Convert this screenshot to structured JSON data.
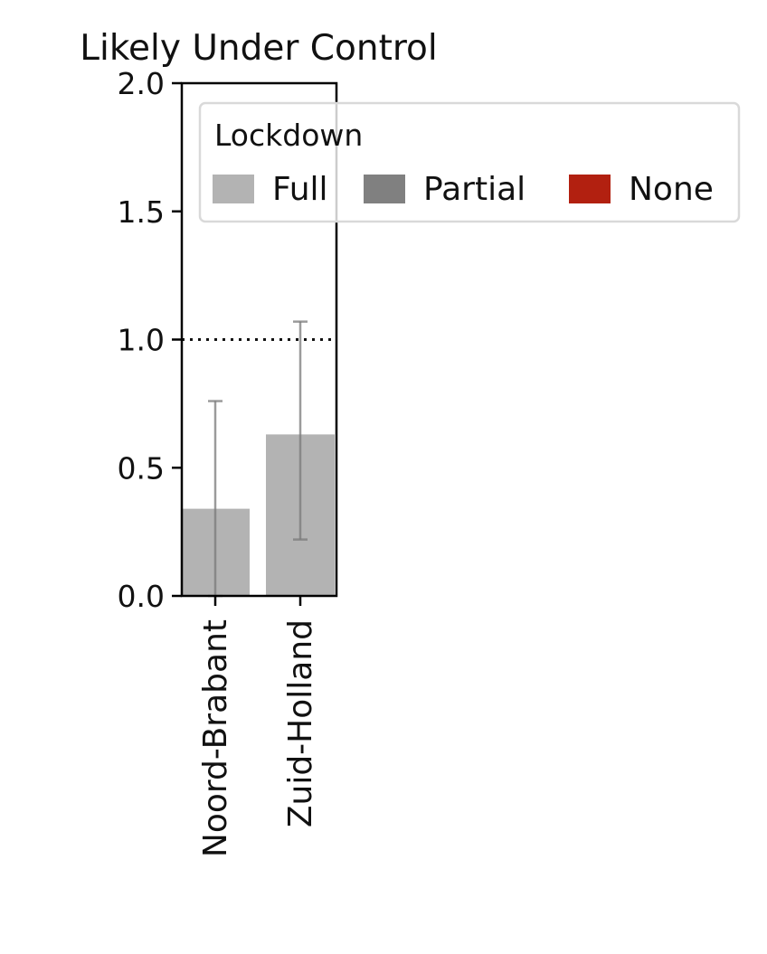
{
  "chart_data": {
    "type": "bar",
    "title": "Likely Under Control",
    "xlabel": "",
    "ylabel": "",
    "ylim": [
      0,
      2.0
    ],
    "yticks": [
      "0.0",
      "0.5",
      "1.0",
      "1.5",
      "2.0"
    ],
    "reference_line": 1.0,
    "categories": [
      "Noord-Brabant",
      "Zuid-Holland"
    ],
    "values": [
      0.34,
      0.63
    ],
    "error_low": [
      0.0,
      0.22
    ],
    "error_high": [
      0.76,
      1.07
    ],
    "bar_lockdown": [
      "Full",
      "Full"
    ],
    "legend": {
      "title": "Lockdown",
      "placement": "top-right",
      "entries": [
        {
          "label": "Full",
          "color": "#b3b3b3"
        },
        {
          "label": "Partial",
          "color": "#808080"
        },
        {
          "label": "None",
          "color": "#b22010"
        }
      ]
    },
    "grid": false
  }
}
